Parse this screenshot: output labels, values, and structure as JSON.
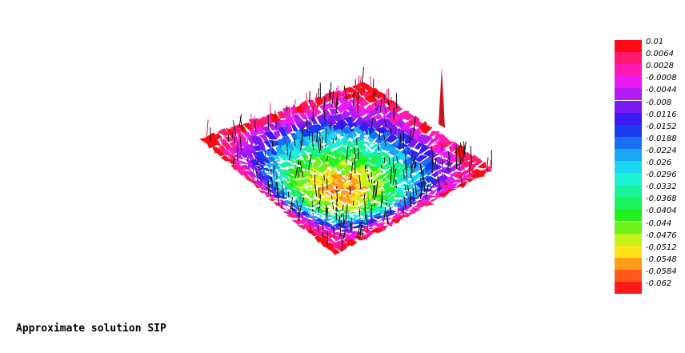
{
  "caption": "Approximate solution SIP",
  "chart_data": {
    "type": "heatmap",
    "title": "",
    "xlabel": "",
    "ylabel": "",
    "colorbar": {
      "placement": "right",
      "ticks": [
        "0.01",
        "0.0064",
        "0.0028",
        "-0.0008",
        "-0.0044",
        "-0.008",
        "-0.0116",
        "-0.0152",
        "-0.0188",
        "-0.0224",
        "-0.026",
        "-0.0296",
        "-0.0332",
        "-0.0368",
        "-0.0404",
        "-0.044",
        "-0.0476",
        "-0.0512",
        "-0.0548",
        "-0.0584",
        "-0.062"
      ],
      "colors": [
        "#ff0a14",
        "#ff1a6e",
        "#ff1ab4",
        "#ea1af2",
        "#b41af2",
        "#7a1af2",
        "#3a1af2",
        "#1a3af2",
        "#1a70f2",
        "#1aa8f2",
        "#1ad6f2",
        "#1af2d2",
        "#1af29a",
        "#1af25e",
        "#22f21a",
        "#6cf21a",
        "#c4f21a",
        "#ffe41a",
        "#ff9e1a",
        "#ff5a1a",
        "#ff1a1a"
      ]
    },
    "surface": {
      "value_range": [
        -0.062,
        0.01
      ],
      "minimum_near": "center",
      "maximum_near": "edges"
    }
  }
}
